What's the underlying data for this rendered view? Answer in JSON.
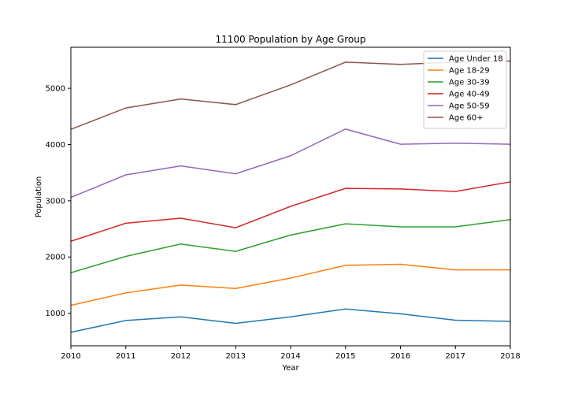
{
  "chart_data": {
    "type": "line",
    "title": "11100 Population by Age Group",
    "xlabel": "Year",
    "ylabel": "Population",
    "x": [
      2010,
      2011,
      2012,
      2013,
      2014,
      2015,
      2016,
      2017,
      2018
    ],
    "xlim": [
      2010,
      2018
    ],
    "ylim": [
      420,
      5730
    ],
    "yticks": [
      1000,
      2000,
      3000,
      4000,
      5000
    ],
    "grid": false,
    "legend_position": "top-right",
    "series": [
      {
        "name": "Age Under 18",
        "color": "#1f77b4",
        "values": [
          660,
          870,
          935,
          820,
          935,
          1075,
          990,
          875,
          855
        ]
      },
      {
        "name": "Age 18-29",
        "color": "#ff7f0e",
        "values": [
          1140,
          1360,
          1500,
          1440,
          1625,
          1850,
          1870,
          1770,
          1770
        ]
      },
      {
        "name": "Age 30-39",
        "color": "#2ca02c",
        "values": [
          1720,
          2010,
          2230,
          2100,
          2390,
          2590,
          2535,
          2535,
          2665
        ]
      },
      {
        "name": "Age 40-49",
        "color": "#d62728",
        "values": [
          2280,
          2600,
          2690,
          2520,
          2900,
          3220,
          3210,
          3165,
          3335
        ]
      },
      {
        "name": "Age 50-59",
        "color": "#9467bd",
        "values": [
          3060,
          3460,
          3620,
          3480,
          3800,
          4275,
          4005,
          4025,
          4005
        ]
      },
      {
        "name": "Age 60+",
        "color": "#8c564b",
        "values": [
          4270,
          4650,
          4810,
          4710,
          5060,
          5465,
          5425,
          5465,
          5485
        ]
      }
    ]
  }
}
